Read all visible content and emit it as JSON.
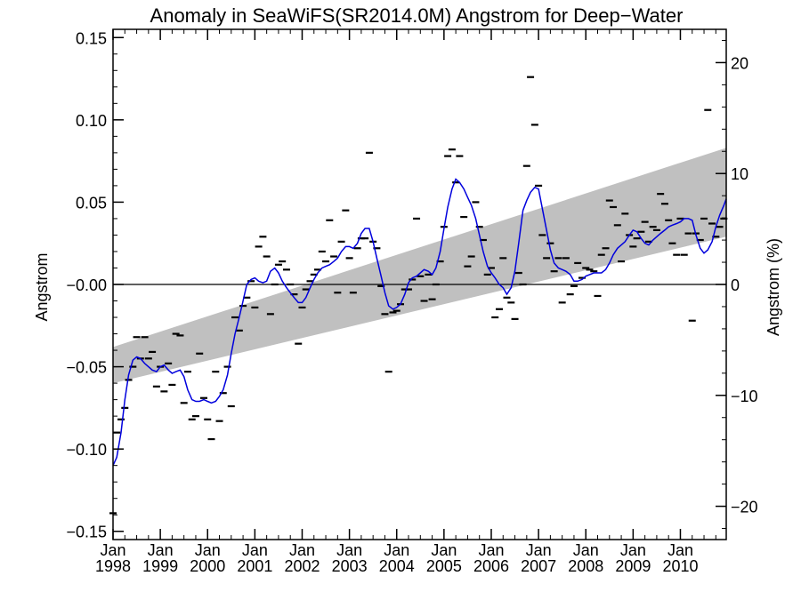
{
  "chart_data": {
    "type": "scatter",
    "title": "Anomaly in SeaWiFS(SR2014.0M) Angstrom for Deep−Water",
    "ylabel": "Angstrom",
    "ylabel_right": "Angstrom (%)",
    "xlim": [
      1998.0,
      2010.97
    ],
    "ylim": [
      -0.155,
      0.155
    ],
    "ylim_right": [
      -23.0,
      23.0
    ],
    "y_ticks": [
      {
        "value": 0.15,
        "label": "0.15"
      },
      {
        "value": 0.1,
        "label": "0.10"
      },
      {
        "value": 0.05,
        "label": "0.05"
      },
      {
        "value": 0.0,
        "label": "−0.00"
      },
      {
        "value": -0.05,
        "label": "−0.05"
      },
      {
        "value": -0.1,
        "label": "−0.10"
      },
      {
        "value": -0.15,
        "label": "−0.15"
      }
    ],
    "y_ticks_right": [
      {
        "value": 20,
        "label": "20"
      },
      {
        "value": 10,
        "label": "10"
      },
      {
        "value": 0,
        "label": "0"
      },
      {
        "value": -10,
        "label": "−10"
      },
      {
        "value": -20,
        "label": "−20"
      }
    ],
    "x_ticks": [
      {
        "value": 1998,
        "month": "Jan",
        "year": "1998"
      },
      {
        "value": 1999,
        "month": "Jan",
        "year": "1999"
      },
      {
        "value": 2000,
        "month": "Jan",
        "year": "2000"
      },
      {
        "value": 2001,
        "month": "Jan",
        "year": "2001"
      },
      {
        "value": 2002,
        "month": "Jan",
        "year": "2002"
      },
      {
        "value": 2003,
        "month": "Jan",
        "year": "2003"
      },
      {
        "value": 2004,
        "month": "Jan",
        "year": "2004"
      },
      {
        "value": 2005,
        "month": "Jan",
        "year": "2005"
      },
      {
        "value": 2006,
        "month": "Jan",
        "year": "2006"
      },
      {
        "value": 2007,
        "month": "Jan",
        "year": "2007"
      },
      {
        "value": 2008,
        "month": "Jan",
        "year": "2008"
      },
      {
        "value": 2009,
        "month": "Jan",
        "year": "2009"
      },
      {
        "value": 2010,
        "month": "Jan",
        "year": "2010"
      }
    ],
    "trend_band": {
      "x": [
        1998.0,
        2010.97
      ],
      "upper": [
        -0.038,
        0.083
      ],
      "lower": [
        -0.06,
        0.029
      ],
      "color": "#c0c0c0"
    },
    "zero_line": 0.0,
    "monthly_anomalies": {
      "color": "#000000",
      "x": [
        1998.0,
        1998.08,
        1998.17,
        1998.25,
        1998.33,
        1998.42,
        1998.5,
        1998.58,
        1998.67,
        1998.75,
        1998.83,
        1998.92,
        1999.0,
        1999.08,
        1999.17,
        1999.25,
        1999.33,
        1999.42,
        1999.5,
        1999.58,
        1999.67,
        1999.75,
        1999.83,
        1999.92,
        2000.0,
        2000.08,
        2000.17,
        2000.25,
        2000.33,
        2000.42,
        2000.5,
        2000.58,
        2000.67,
        2000.75,
        2000.83,
        2000.92,
        2001.0,
        2001.08,
        2001.17,
        2001.25,
        2001.33,
        2001.42,
        2001.5,
        2001.58,
        2001.67,
        2001.75,
        2001.83,
        2001.92,
        2002.0,
        2002.08,
        2002.17,
        2002.25,
        2002.33,
        2002.42,
        2002.5,
        2002.58,
        2002.67,
        2002.75,
        2002.83,
        2002.92,
        2003.0,
        2003.08,
        2003.17,
        2003.25,
        2003.33,
        2003.42,
        2003.5,
        2003.58,
        2003.67,
        2003.75,
        2003.83,
        2003.92,
        2004.0,
        2004.08,
        2004.17,
        2004.25,
        2004.33,
        2004.42,
        2004.5,
        2004.58,
        2004.67,
        2004.75,
        2004.83,
        2004.92,
        2005.0,
        2005.08,
        2005.17,
        2005.25,
        2005.33,
        2005.42,
        2005.5,
        2005.58,
        2005.67,
        2005.75,
        2005.83,
        2005.92,
        2006.0,
        2006.08,
        2006.17,
        2006.25,
        2006.33,
        2006.42,
        2006.5,
        2006.58,
        2006.67,
        2006.75,
        2006.83,
        2006.92,
        2007.0,
        2007.08,
        2007.17,
        2007.25,
        2007.33,
        2007.42,
        2007.5,
        2007.58,
        2007.67,
        2007.75,
        2007.83,
        2007.92,
        2008.0,
        2008.08,
        2008.17,
        2008.25,
        2008.33,
        2008.42,
        2008.5,
        2008.58,
        2008.67,
        2008.75,
        2008.83,
        2008.92,
        2009.0,
        2009.08,
        2009.17,
        2009.25,
        2009.33,
        2009.42,
        2009.5,
        2009.58,
        2009.67,
        2009.75,
        2009.83,
        2009.92,
        2010.0,
        2010.08,
        2010.17,
        2010.25,
        2010.33,
        2010.42,
        2010.5,
        2010.58,
        2010.67,
        2010.75,
        2010.83,
        2010.92
      ],
      "y": [
        -0.139,
        -0.09,
        -0.082,
        -0.075,
        -0.058,
        -0.05,
        -0.032,
        -0.045,
        -0.032,
        -0.045,
        -0.041,
        -0.062,
        -0.05,
        -0.065,
        -0.048,
        -0.061,
        -0.03,
        -0.031,
        -0.072,
        -0.053,
        -0.082,
        -0.08,
        -0.042,
        -0.069,
        -0.082,
        -0.094,
        -0.053,
        -0.083,
        -0.066,
        -0.05,
        -0.074,
        -0.02,
        -0.028,
        -0.013,
        -0.008,
        0.002,
        -0.014,
        0.023,
        0.029,
        0.017,
        -0.018,
        0.0,
        0.012,
        0.014,
        0.009,
        0.0,
        -0.006,
        -0.036,
        -0.014,
        -0.003,
        0.002,
        0.006,
        0.009,
        0.02,
        0.014,
        0.039,
        0.017,
        -0.005,
        0.026,
        0.045,
        0.016,
        -0.005,
        0.022,
        0.028,
        0.028,
        0.08,
        0.026,
        0.022,
        -0.001,
        -0.018,
        -0.053,
        -0.017,
        -0.016,
        -0.012,
        -0.003,
        -0.003,
        0.003,
        0.04,
        0.005,
        -0.01,
        0.006,
        -0.009,
        0.0,
        0.014,
        0.035,
        0.078,
        0.082,
        0.062,
        0.078,
        0.041,
        0.011,
        0.017,
        0.05,
        0.035,
        0.027,
        0.006,
        0.01,
        -0.02,
        -0.015,
        0.016,
        -0.008,
        -0.011,
        -0.021,
        0.007,
        0.0,
        0.072,
        0.126,
        0.097,
        0.06,
        0.03,
        0.016,
        0.025,
        0.008,
        0.016,
        -0.011,
        0.016,
        -0.006,
        -0.001,
        0.013,
        0.004,
        0.01,
        0.009,
        0.008,
        -0.007,
        0.018,
        0.022,
        0.051,
        0.047,
        0.036,
        0.014,
        0.043,
        0.03,
        0.023,
        0.028,
        0.032,
        0.038,
        0.026,
        0.035,
        0.033,
        0.055,
        0.049,
        0.039,
        0.025,
        0.018,
        0.04,
        0.018,
        0.031,
        -0.022,
        0.031,
        0.027,
        0.04,
        0.106,
        0.037,
        0.029,
        0.035,
        0.04
      ]
    },
    "smoothed": {
      "color": "#0000dd",
      "x": [
        1998.0,
        1998.08,
        1998.17,
        1998.25,
        1998.33,
        1998.42,
        1998.5,
        1998.58,
        1998.67,
        1998.75,
        1998.83,
        1998.92,
        1999.0,
        1999.08,
        1999.17,
        1999.25,
        1999.33,
        1999.42,
        1999.5,
        1999.58,
        1999.67,
        1999.75,
        1999.83,
        1999.92,
        2000.0,
        2000.08,
        2000.17,
        2000.25,
        2000.33,
        2000.42,
        2000.5,
        2000.58,
        2000.67,
        2000.75,
        2000.83,
        2000.92,
        2001.0,
        2001.08,
        2001.17,
        2001.25,
        2001.33,
        2001.42,
        2001.5,
        2001.58,
        2001.67,
        2001.75,
        2001.83,
        2001.92,
        2002.0,
        2002.08,
        2002.17,
        2002.25,
        2002.33,
        2002.42,
        2002.5,
        2002.58,
        2002.67,
        2002.75,
        2002.83,
        2002.92,
        2003.0,
        2003.08,
        2003.17,
        2003.25,
        2003.33,
        2003.42,
        2003.5,
        2003.58,
        2003.67,
        2003.75,
        2003.83,
        2003.92,
        2004.0,
        2004.08,
        2004.17,
        2004.25,
        2004.33,
        2004.42,
        2004.5,
        2004.58,
        2004.67,
        2004.75,
        2004.83,
        2004.92,
        2005.0,
        2005.08,
        2005.17,
        2005.25,
        2005.33,
        2005.42,
        2005.5,
        2005.58,
        2005.67,
        2005.75,
        2005.83,
        2005.92,
        2006.0,
        2006.08,
        2006.17,
        2006.25,
        2006.33,
        2006.42,
        2006.5,
        2006.58,
        2006.67,
        2006.75,
        2006.83,
        2006.92,
        2007.0,
        2007.08,
        2007.17,
        2007.25,
        2007.33,
        2007.42,
        2007.5,
        2007.58,
        2007.67,
        2007.75,
        2007.83,
        2007.92,
        2008.0,
        2008.08,
        2008.17,
        2008.25,
        2008.33,
        2008.42,
        2008.5,
        2008.58,
        2008.67,
        2008.75,
        2008.83,
        2008.92,
        2009.0,
        2009.08,
        2009.17,
        2009.25,
        2009.33,
        2009.42,
        2009.5,
        2009.58,
        2009.67,
        2009.75,
        2009.83,
        2009.92,
        2010.0,
        2010.08,
        2010.17,
        2010.25,
        2010.33,
        2010.42,
        2010.5,
        2010.58,
        2010.67,
        2010.75,
        2010.83,
        2010.92,
        2010.97
      ],
      "y": [
        -0.11,
        -0.105,
        -0.09,
        -0.07,
        -0.055,
        -0.046,
        -0.044,
        -0.045,
        -0.048,
        -0.05,
        -0.052,
        -0.053,
        -0.05,
        -0.049,
        -0.052,
        -0.054,
        -0.053,
        -0.052,
        -0.056,
        -0.064,
        -0.07,
        -0.071,
        -0.071,
        -0.07,
        -0.071,
        -0.072,
        -0.071,
        -0.068,
        -0.064,
        -0.055,
        -0.042,
        -0.03,
        -0.02,
        -0.01,
        0.0,
        0.003,
        0.004,
        0.002,
        0.001,
        0.002,
        0.008,
        0.01,
        0.007,
        0.002,
        -0.002,
        -0.005,
        -0.008,
        -0.011,
        -0.011,
        -0.008,
        -0.002,
        0.003,
        0.007,
        0.01,
        0.011,
        0.012,
        0.014,
        0.016,
        0.02,
        0.023,
        0.023,
        0.022,
        0.025,
        0.031,
        0.034,
        0.034,
        0.026,
        0.016,
        0.005,
        -0.005,
        -0.013,
        -0.015,
        -0.014,
        -0.012,
        -0.006,
        0.001,
        0.004,
        0.005,
        0.007,
        0.009,
        0.008,
        0.006,
        0.01,
        0.02,
        0.034,
        0.047,
        0.058,
        0.064,
        0.062,
        0.058,
        0.053,
        0.048,
        0.04,
        0.03,
        0.02,
        0.011,
        0.007,
        0.004,
        0.0,
        -0.002,
        -0.006,
        -0.002,
        0.008,
        0.025,
        0.045,
        0.051,
        0.056,
        0.059,
        0.058,
        0.046,
        0.033,
        0.021,
        0.013,
        0.01,
        0.009,
        0.008,
        0.006,
        0.002,
        0.002,
        0.003,
        0.005,
        0.006,
        0.007,
        0.007,
        0.007,
        0.009,
        0.013,
        0.018,
        0.022,
        0.024,
        0.026,
        0.03,
        0.033,
        0.032,
        0.028,
        0.025,
        0.024,
        0.027,
        0.029,
        0.031,
        0.033,
        0.035,
        0.036,
        0.037,
        0.038,
        0.04,
        0.04,
        0.039,
        0.03,
        0.022,
        0.019,
        0.021,
        0.026,
        0.035,
        0.042,
        0.048,
        0.052
      ]
    }
  }
}
